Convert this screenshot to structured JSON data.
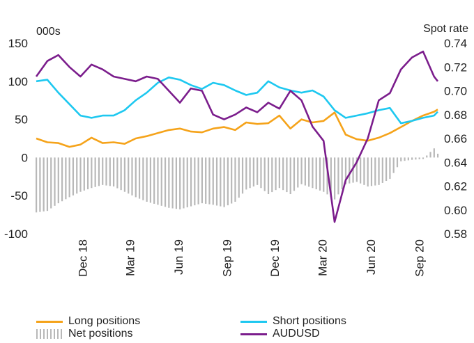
{
  "chart_data": {
    "type": "line",
    "left_unit": "000s",
    "right_unit": "Spot rate",
    "y_left_range": [
      -100,
      150
    ],
    "y_left_ticks": [
      "150",
      "100",
      "50",
      "0",
      "-50",
      "-100"
    ],
    "y_right_range": [
      0.58,
      0.74
    ],
    "y_right_ticks": [
      "0.74",
      "0.72",
      "0.70",
      "0.68",
      "0.66",
      "0.64",
      "0.62",
      "0.60",
      "0.58"
    ],
    "x_range": [
      "2018-09-04",
      "2020-10-06"
    ],
    "x_tick_labels": [
      {
        "label": "Dec 18",
        "date": "2018-12-01"
      },
      {
        "label": "Mar 19",
        "date": "2019-03-01"
      },
      {
        "label": "Jun 19",
        "date": "2019-06-01"
      },
      {
        "label": "Sep 19",
        "date": "2019-09-01"
      },
      {
        "label": "Dec 19",
        "date": "2019-12-01"
      },
      {
        "label": "Mar 20",
        "date": "2020-03-01"
      },
      {
        "label": "Jun 20",
        "date": "2020-06-01"
      },
      {
        "label": "Sep 20",
        "date": "2020-09-01"
      }
    ],
    "grid": false,
    "legend_position": "bottom",
    "series": [
      {
        "name": "Long positions",
        "axis": "left",
        "kind": "line",
        "color": "#f5a31a",
        "x": [
          "2018-09-04",
          "2018-09-25",
          "2018-10-16",
          "2018-11-06",
          "2018-11-27",
          "2018-12-18",
          "2019-01-08",
          "2019-01-29",
          "2019-02-19",
          "2019-03-12",
          "2019-04-02",
          "2019-04-23",
          "2019-05-14",
          "2019-06-04",
          "2019-06-25",
          "2019-07-16",
          "2019-08-06",
          "2019-08-27",
          "2019-09-17",
          "2019-10-08",
          "2019-10-29",
          "2019-11-19",
          "2019-12-10",
          "2019-12-31",
          "2020-01-21",
          "2020-02-11",
          "2020-03-03",
          "2020-03-24",
          "2020-04-14",
          "2020-05-05",
          "2020-05-26",
          "2020-06-16",
          "2020-07-07",
          "2020-07-28",
          "2020-08-18",
          "2020-09-08",
          "2020-09-29",
          "2020-10-06"
        ],
        "values": [
          25,
          20,
          19,
          14,
          17,
          26,
          19,
          20,
          18,
          25,
          28,
          32,
          36,
          38,
          34,
          33,
          38,
          40,
          36,
          46,
          44,
          45,
          55,
          38,
          50,
          46,
          48,
          59,
          30,
          24,
          22,
          26,
          32,
          40,
          48,
          55,
          60,
          63
        ]
      },
      {
        "name": "Short positions",
        "axis": "left",
        "kind": "line",
        "color": "#1ec8f0",
        "x": [
          "2018-09-04",
          "2018-09-25",
          "2018-10-16",
          "2018-11-06",
          "2018-11-27",
          "2018-12-18",
          "2019-01-08",
          "2019-01-29",
          "2019-02-19",
          "2019-03-12",
          "2019-04-02",
          "2019-04-23",
          "2019-05-14",
          "2019-06-04",
          "2019-06-25",
          "2019-07-16",
          "2019-08-06",
          "2019-08-27",
          "2019-09-17",
          "2019-10-08",
          "2019-10-29",
          "2019-11-19",
          "2019-12-10",
          "2019-12-31",
          "2020-01-21",
          "2020-02-11",
          "2020-03-03",
          "2020-03-24",
          "2020-04-14",
          "2020-05-05",
          "2020-05-26",
          "2020-06-16",
          "2020-07-07",
          "2020-07-28",
          "2020-08-18",
          "2020-09-08",
          "2020-09-29",
          "2020-10-06"
        ],
        "values": [
          100,
          102,
          85,
          70,
          55,
          52,
          55,
          55,
          62,
          75,
          85,
          98,
          105,
          102,
          95,
          90,
          98,
          95,
          88,
          82,
          85,
          100,
          92,
          88,
          85,
          88,
          80,
          62,
          52,
          55,
          58,
          62,
          65,
          45,
          48,
          52,
          55,
          60
        ]
      },
      {
        "name": "Net positions",
        "axis": "left",
        "kind": "bar",
        "color": "#b8b8b8",
        "x": [
          "2018-09-04",
          "2018-09-25",
          "2018-10-16",
          "2018-11-06",
          "2018-11-27",
          "2018-12-18",
          "2019-01-08",
          "2019-01-29",
          "2019-02-19",
          "2019-03-12",
          "2019-04-02",
          "2019-04-23",
          "2019-05-14",
          "2019-06-04",
          "2019-06-25",
          "2019-07-16",
          "2019-08-06",
          "2019-08-27",
          "2019-09-17",
          "2019-10-08",
          "2019-10-29",
          "2019-11-19",
          "2019-12-10",
          "2019-12-31",
          "2020-01-21",
          "2020-02-11",
          "2020-03-03",
          "2020-03-24",
          "2020-04-14",
          "2020-05-05",
          "2020-05-26",
          "2020-06-16",
          "2020-07-07",
          "2020-07-28",
          "2020-08-18",
          "2020-09-08",
          "2020-09-29",
          "2020-10-06"
        ],
        "values": [
          -72,
          -70,
          -60,
          -52,
          -45,
          -40,
          -36,
          -38,
          -45,
          -52,
          -58,
          -62,
          -66,
          -68,
          -64,
          -60,
          -62,
          -65,
          -58,
          -42,
          -36,
          -48,
          -40,
          -48,
          -35,
          -40,
          -45,
          -55,
          -35,
          -32,
          -38,
          -36,
          -28,
          -5,
          -3,
          -2,
          12,
          5
        ]
      },
      {
        "name": "AUDUSD",
        "axis": "right",
        "kind": "line",
        "color": "#7b1d8c",
        "x": [
          "2018-09-04",
          "2018-09-25",
          "2018-10-16",
          "2018-11-06",
          "2018-11-27",
          "2018-12-18",
          "2019-01-08",
          "2019-01-29",
          "2019-02-19",
          "2019-03-12",
          "2019-04-02",
          "2019-04-23",
          "2019-05-14",
          "2019-06-04",
          "2019-06-25",
          "2019-07-16",
          "2019-08-06",
          "2019-08-27",
          "2019-09-17",
          "2019-10-08",
          "2019-10-29",
          "2019-11-19",
          "2019-12-10",
          "2019-12-31",
          "2020-01-21",
          "2020-02-11",
          "2020-03-03",
          "2020-03-24",
          "2020-04-14",
          "2020-05-05",
          "2020-05-26",
          "2020-06-16",
          "2020-07-07",
          "2020-07-28",
          "2020-08-18",
          "2020-09-08",
          "2020-09-29",
          "2020-10-06"
        ],
        "values": [
          0.712,
          0.725,
          0.73,
          0.72,
          0.712,
          0.722,
          0.718,
          0.712,
          0.71,
          0.708,
          0.712,
          0.71,
          0.7,
          0.69,
          0.702,
          0.7,
          0.68,
          0.676,
          0.68,
          0.686,
          0.682,
          0.69,
          0.685,
          0.7,
          0.692,
          0.67,
          0.658,
          0.59,
          0.625,
          0.64,
          0.66,
          0.692,
          0.698,
          0.718,
          0.728,
          0.733,
          0.712,
          0.708
        ]
      }
    ]
  },
  "legend": {
    "items": [
      {
        "label": "Long positions",
        "color": "#f5a31a"
      },
      {
        "label": "Short positions",
        "color": "#1ec8f0"
      },
      {
        "label": "Net positions",
        "color": "#b8b8b8"
      },
      {
        "label": "AUDUSD",
        "color": "#7b1d8c"
      }
    ]
  }
}
